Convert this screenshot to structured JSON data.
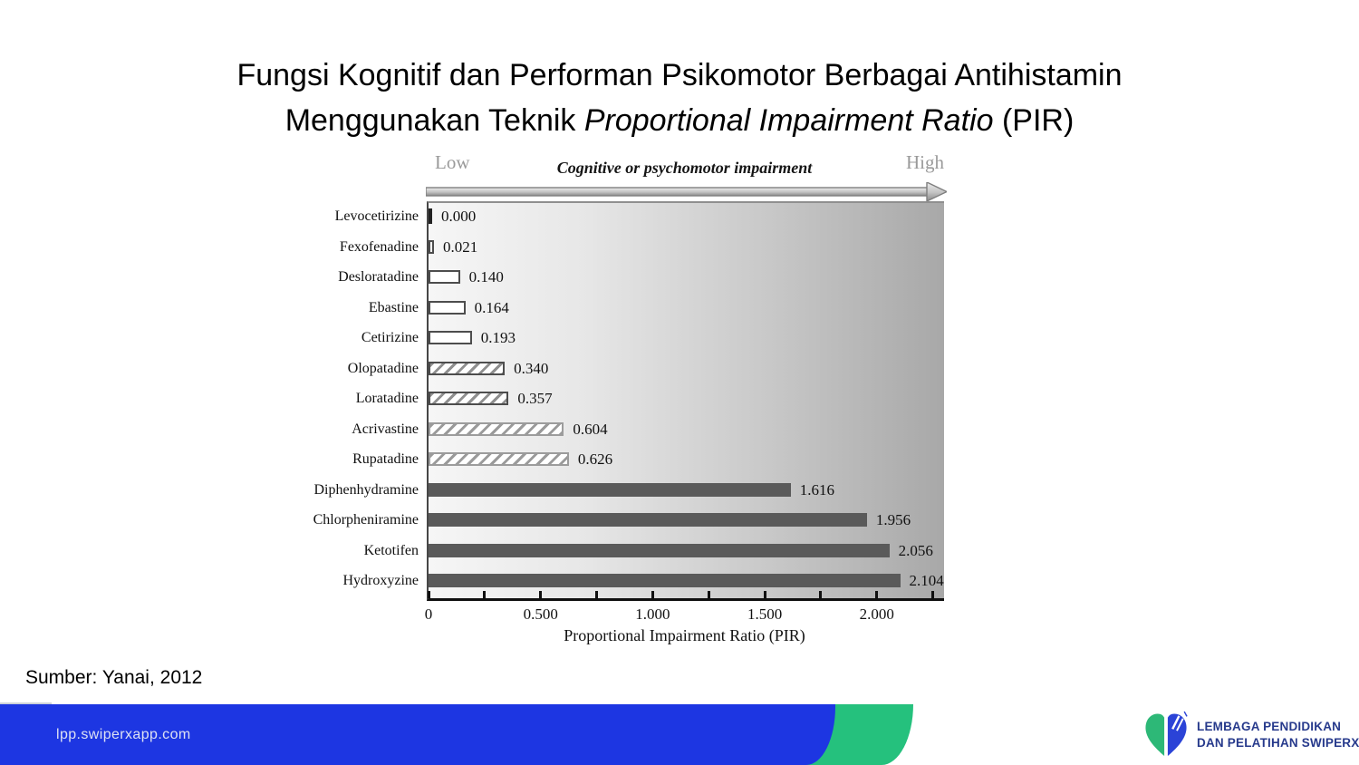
{
  "slide": {
    "title_line1": "Fungsi Kognitif dan Performan Psikomotor Berbagai Antihistamin",
    "title_line2_pre": "Menggunakan Teknik ",
    "title_line2_italic": "Proportional Impairment Ratio",
    "title_line2_post": " (PIR)",
    "source_note": "Sumber: Yanai, 2012"
  },
  "chart_data": {
    "type": "bar",
    "orientation": "horizontal",
    "axis_top": {
      "left_label": "Low",
      "right_label": "High",
      "center_label": "Cognitive or psychomotor impairment"
    },
    "xlabel": "Proportional Impairment Ratio (PIR)",
    "xlim": [
      0,
      2.3
    ],
    "x_minor_step": 0.25,
    "x_major_ticks": [
      {
        "value": 0,
        "label": "0"
      },
      {
        "value": 0.5,
        "label": "0.500"
      },
      {
        "value": 1,
        "label": "1.000"
      },
      {
        "value": 1.5,
        "label": "1.500"
      },
      {
        "value": 2,
        "label": "2.000"
      }
    ],
    "bars": [
      {
        "category": "Levocetirizine",
        "value": 0.0,
        "label": "0.000",
        "style": "tick"
      },
      {
        "category": "Fexofenadine",
        "value": 0.021,
        "label": "0.021",
        "style": "outline"
      },
      {
        "category": "Desloratadine",
        "value": 0.14,
        "label": "0.140",
        "style": "outline"
      },
      {
        "category": "Ebastine",
        "value": 0.164,
        "label": "0.164",
        "style": "outline"
      },
      {
        "category": "Cetirizine",
        "value": 0.193,
        "label": "0.193",
        "style": "outline"
      },
      {
        "category": "Olopatadine",
        "value": 0.34,
        "label": "0.340",
        "style": "hatched"
      },
      {
        "category": "Loratadine",
        "value": 0.357,
        "label": "0.357",
        "style": "hatched"
      },
      {
        "category": "Acrivastine",
        "value": 0.604,
        "label": "0.604",
        "style": "hatched_light"
      },
      {
        "category": "Rupatadine",
        "value": 0.626,
        "label": "0.626",
        "style": "hatched_light"
      },
      {
        "category": "Diphenhydramine",
        "value": 1.616,
        "label": "1.616",
        "style": "solid"
      },
      {
        "category": "Chlorpheniramine",
        "value": 1.956,
        "label": "1.956",
        "style": "solid"
      },
      {
        "category": "Ketotifen",
        "value": 2.056,
        "label": "2.056",
        "style": "solid"
      },
      {
        "category": "Hydroxyzine",
        "value": 2.104,
        "label": "2.104",
        "style": "solid"
      }
    ],
    "colors": {
      "solid_bar": "#5a5a5a",
      "plot_bg_left": "#f6f6f6",
      "plot_bg_right": "#a8a8a8"
    }
  },
  "footer": {
    "url": "lpp.swiperxapp.com",
    "colors": {
      "bar_blue": "#1d36e2",
      "accent_green": "#25c17d"
    },
    "logo": {
      "line1": "LEMBAGA PENDIDIKAN",
      "line2": "DAN PELATIHAN SWIPERX",
      "text_color": "#273a8c",
      "heart_green": "#2db877",
      "heart_blue": "#2b43d7"
    }
  }
}
